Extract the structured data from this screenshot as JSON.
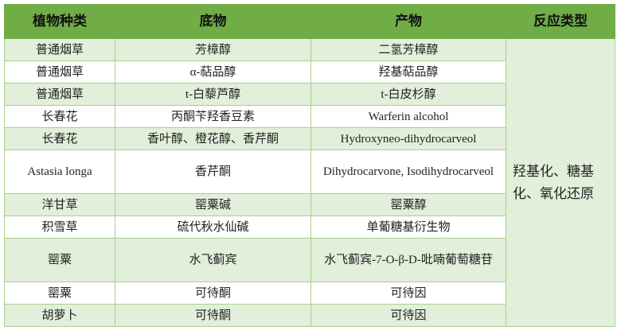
{
  "header": [
    "植物种类",
    "底物",
    "产物",
    "反应类型"
  ],
  "rows": [
    {
      "plant": "普通烟草",
      "substrate": "芳樟醇",
      "product": "二氢芳樟醇"
    },
    {
      "plant": "普通烟草",
      "substrate": "α-萜品醇",
      "product": "羟基萜品醇"
    },
    {
      "plant": "普通烟草",
      "substrate": "t-白藜芦醇",
      "product": "t-白皮杉醇"
    },
    {
      "plant": "长春花",
      "substrate": "丙酮苄羟香豆素",
      "product": "Warferin alcohol"
    },
    {
      "plant": "长春花",
      "substrate": "香叶醇、橙花醇、香芹酮",
      "product": "Hydroxyneo-dihydrocarveol"
    },
    {
      "plant": "Astasia longa",
      "substrate": "香芹酮",
      "product": "Dihydrocarvone, Isodihydrocarveol"
    },
    {
      "plant": "洋甘草",
      "substrate": "罂粟碱",
      "product": "罂粟醇"
    },
    {
      "plant": "积雪草",
      "substrate": "硫代秋水仙碱",
      "product": "单葡糖基衍生物"
    },
    {
      "plant": "罂粟",
      "substrate": "水飞蓟宾",
      "product": "水飞蓟宾-7-O-β-D-吡喃葡萄糖苷"
    },
    {
      "plant": "罂粟",
      "substrate": "可待酮",
      "product": "可待因"
    },
    {
      "plant": "胡萝卜",
      "substrate": "可待酮",
      "product": "可待因"
    }
  ],
  "reaction_type": "羟基化、糖基化、氧化还原",
  "colors": {
    "header": "#70ad47",
    "band": "#e2efda",
    "border": "#a9d08e"
  }
}
